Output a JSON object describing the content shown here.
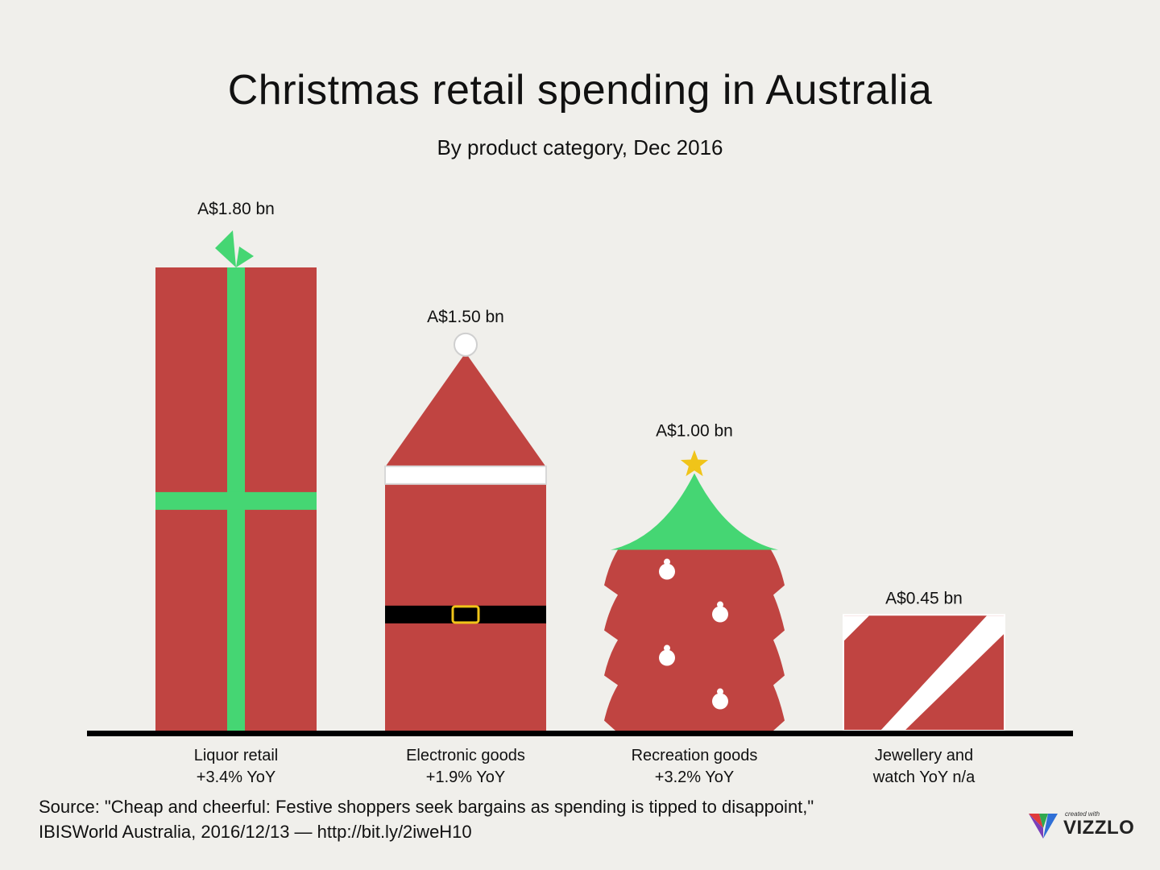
{
  "title": "Christmas retail spending in Australia",
  "subtitle": "By product category, Dec 2016",
  "chart_data": {
    "type": "bar",
    "title": "Christmas retail spending in Australia",
    "subtitle": "By product category, Dec 2016",
    "unit": "A$ bn",
    "categories": [
      "Liquor retail\n+3.4% YoY",
      "Electronic goods\n+1.9% YoY",
      "Recreation goods\n+3.2% YoY",
      "Jewellery and\nwatch YoY n/a"
    ],
    "category_lines": [
      [
        "Liquor retail",
        "+3.4% YoY"
      ],
      [
        "Electronic goods",
        "+1.9% YoY"
      ],
      [
        "Recreation goods",
        "+3.2% YoY"
      ],
      [
        "Jewellery and",
        "watch YoY n/a"
      ]
    ],
    "values": [
      1.8,
      1.5,
      1.0,
      0.45
    ],
    "value_labels": [
      "A$1.80 bn",
      "A$1.50 bn",
      "A$1.00 bn",
      "A$0.45 bn"
    ],
    "shapes": [
      "gift",
      "santa",
      "tree",
      "gift-box"
    ],
    "ylim": [
      0,
      1.8
    ],
    "grid": false,
    "legend": "none",
    "colors": {
      "bar": "#c04441",
      "ribbon": "#45d673",
      "belt": "#000000",
      "buckle": "#f0c419",
      "trim": "#ffffff",
      "star": "#f0c419",
      "axis": "#000000"
    }
  },
  "source": {
    "line1": "Source: \"Cheap and cheerful: Festive shoppers seek bargains as spending is tipped to disappoint,\"",
    "line2": "IBISWorld Australia, 2016/12/13  — http://bit.ly/2iweH10"
  },
  "brand": {
    "small": "created with",
    "name": "VIZZLO",
    "icon": "vizzlo-logo-icon"
  }
}
